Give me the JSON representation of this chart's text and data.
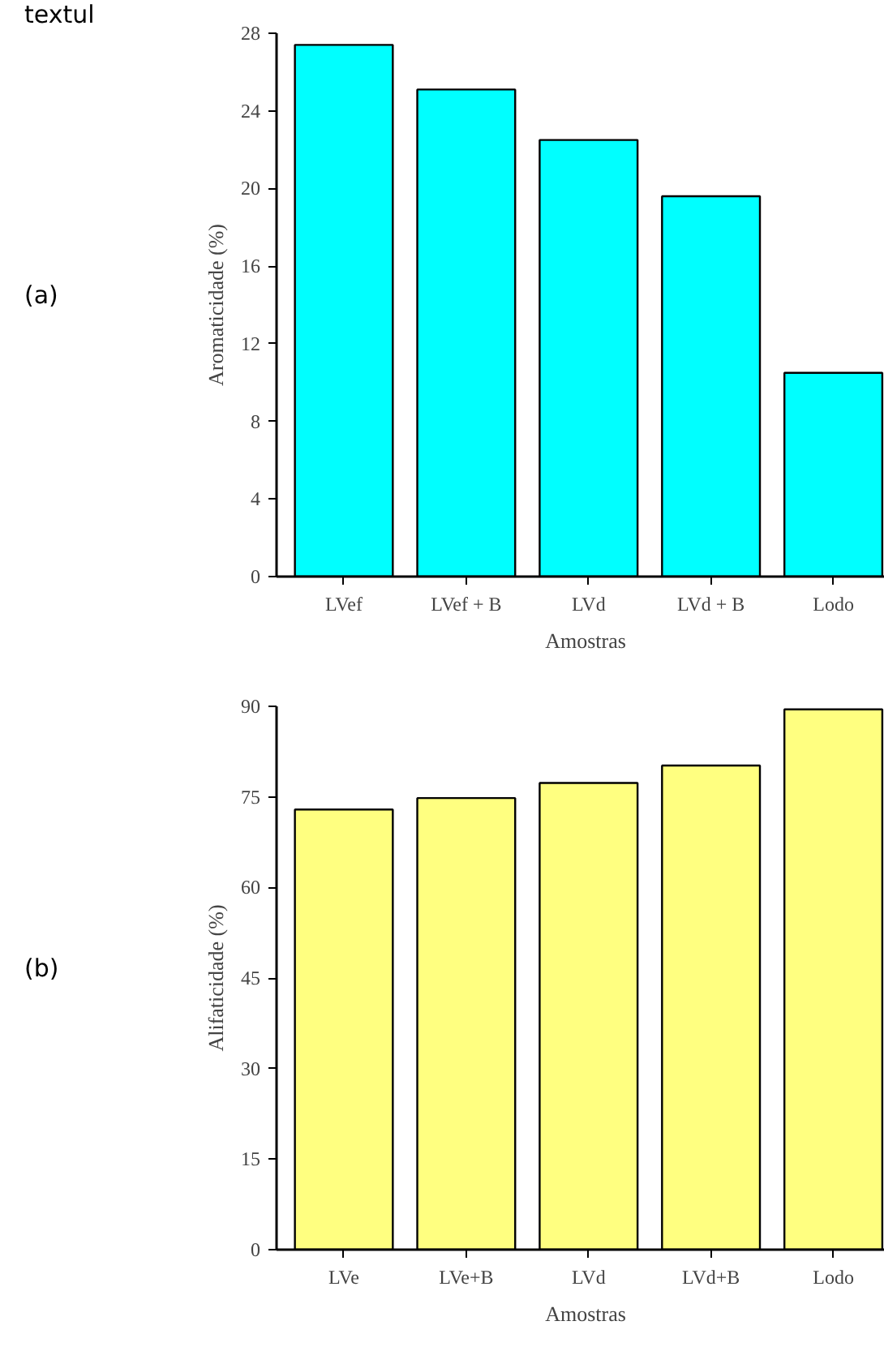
{
  "chart_data": [
    {
      "type": "bar",
      "annotations": [
        "textul",
        "(a)"
      ],
      "xlabel": "Amostras",
      "ylabel": "Aromaticidade (%)",
      "categories": [
        "LVef",
        "LVef + B",
        "LVd",
        "LVd + B",
        "Lodo"
      ],
      "values": [
        27.4,
        25.1,
        22.5,
        19.6,
        10.5
      ],
      "color": "#00ffff",
      "ylim": [
        0,
        28
      ],
      "yticks": [
        0,
        4,
        8,
        12,
        16,
        20,
        24,
        28
      ],
      "grid": false
    },
    {
      "type": "bar",
      "annotations": [
        "(b)"
      ],
      "xlabel": "Amostras",
      "ylabel": "Alifaticidade (%)",
      "categories": [
        "LVe",
        "LVe+B",
        "LVd",
        "LVd+B",
        "Lodo"
      ],
      "values": [
        72.9,
        74.8,
        77.3,
        80.2,
        89.5
      ],
      "color": "#ffff80",
      "ylim": [
        0,
        90
      ],
      "yticks": [
        0,
        15,
        30,
        45,
        60,
        75,
        90
      ],
      "grid": false
    }
  ]
}
